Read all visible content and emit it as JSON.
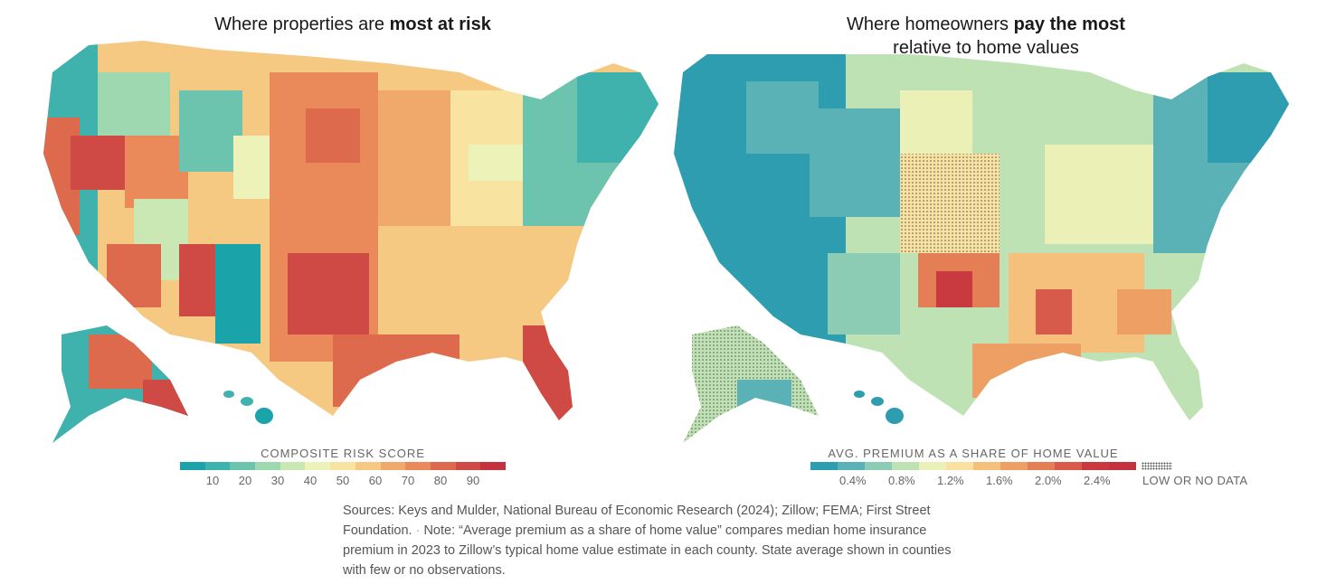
{
  "left_map": {
    "title_plain": "Where properties are ",
    "title_bold": "most at risk",
    "legend_title": "COMPOSITE RISK SCORE",
    "legend_colors": [
      "#1aa3a8",
      "#3fb2ae",
      "#6cc4ae",
      "#9dd8b0",
      "#c9e8b4",
      "#ecf2b8",
      "#f8e3a1",
      "#f6c983",
      "#f1a96b",
      "#ea8a5a",
      "#de6a4e",
      "#cf4a45",
      "#c5323f"
    ],
    "legend_ticks": [
      "10",
      "20",
      "30",
      "40",
      "50",
      "60",
      "70",
      "80",
      "90"
    ]
  },
  "right_map": {
    "title_plain": "Where homeowners ",
    "title_bold": "pay the most",
    "title_line2": "relative to home values",
    "legend_title": "AVG. PREMIUM AS A SHARE OF HOME VALUE",
    "legend_colors": [
      "#2e9db0",
      "#5ab2b6",
      "#8ccbb4",
      "#bfe2b4",
      "#eaf0b6",
      "#f9e2a0",
      "#f5c07c",
      "#eea064",
      "#e37e55",
      "#d75a4a",
      "#c93a40",
      "#c5323f"
    ],
    "legend_ticks": [
      "0.4%",
      "0.8%",
      "1.2%",
      "1.6%",
      "2.0%",
      "2.4%"
    ],
    "nodata_label": "LOW OR NO DATA"
  },
  "sources": {
    "part1": "Sources: Keys and Mulder, National Bureau of Economic Research (2024); Zillow; FEMA; First Street Foundation.",
    "separator": "·",
    "part2": "Note: “Average premium as a share of home value” compares median home insurance premium in 2023 to Zillow’s typical home value estimate in each county. State average shown in counties with few or no observations."
  }
}
